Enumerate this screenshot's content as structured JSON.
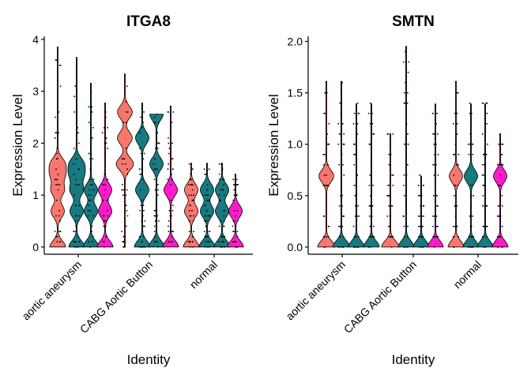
{
  "chart_data": [
    {
      "type": "violin",
      "title": "ITGA8",
      "xlabel": "Identity",
      "ylabel": "Expression Level",
      "categories": [
        "aortic aneurysm",
        "CABG Aortic Button",
        "normal"
      ],
      "ylim": [
        -0.14,
        4.06
      ],
      "yticks": [
        "0",
        "1",
        "2",
        "3",
        "4"
      ],
      "legend": "none",
      "violins": [
        {
          "group": "aortic aneurysm",
          "color": "#F8766D",
          "max": 3.85,
          "modes": [
            0,
            0.69,
            1.1,
            1.39,
            1.61
          ]
        },
        {
          "group": "aortic aneurysm",
          "color": "#167A80",
          "max": 3.65,
          "modes": [
            0,
            0.69,
            1.1,
            1.39,
            1.61
          ]
        },
        {
          "group": "aortic aneurysm",
          "color": "#167A80",
          "max": 3.15,
          "modes": [
            0,
            0.69,
            1.1
          ]
        },
        {
          "group": "aortic aneurysm",
          "color": "#FF1BCC",
          "max": 2.77,
          "modes": [
            0,
            0.69,
            1.1
          ]
        },
        {
          "group": "CABG Aortic Button",
          "color": "#F8766D",
          "max": 3.33,
          "modes": [
            1.6,
            2.1,
            2.6
          ]
        },
        {
          "group": "CABG Aortic Button",
          "color": "#167A80",
          "max": 2.77,
          "modes": [
            0,
            1.1,
            2.1
          ]
        },
        {
          "group": "CABG Aortic Button",
          "color": "#167A80",
          "max": 2.56,
          "modes": [
            0,
            1.6,
            2.56
          ]
        },
        {
          "group": "CABG Aortic Button",
          "color": "#FF1BCC",
          "max": 2.71,
          "modes": [
            0,
            1.1
          ]
        },
        {
          "group": "normal",
          "color": "#F8766D",
          "max": 1.61,
          "modes": [
            0,
            0.69,
            1.1
          ]
        },
        {
          "group": "normal",
          "color": "#167A80",
          "max": 1.61,
          "modes": [
            0,
            0.69,
            1.1
          ]
        },
        {
          "group": "normal",
          "color": "#167A80",
          "max": 1.61,
          "modes": [
            0,
            0.69,
            1.1
          ]
        },
        {
          "group": "normal",
          "color": "#FF1BCC",
          "max": 1.39,
          "modes": [
            0,
            0.69
          ]
        }
      ]
    },
    {
      "type": "violin",
      "title": "SMTN",
      "xlabel": "Identity",
      "ylabel": "Expression Level",
      "categories": [
        "aortic aneurysm",
        "CABG Aortic Button",
        "normal"
      ],
      "ylim": [
        -0.07,
        2.05
      ],
      "yticks": [
        "0.0",
        "0.5",
        "1.0",
        "1.5",
        "2.0"
      ],
      "legend": "none",
      "violins": [
        {
          "group": "aortic aneurysm",
          "color": "#F8766D",
          "max": 1.61,
          "modes": [
            0,
            0.69
          ]
        },
        {
          "group": "aortic aneurysm",
          "color": "#167A80",
          "max": 1.61,
          "modes": [
            0
          ]
        },
        {
          "group": "aortic aneurysm",
          "color": "#167A80",
          "max": 1.39,
          "modes": [
            0
          ]
        },
        {
          "group": "aortic aneurysm",
          "color": "#167A80",
          "max": 1.39,
          "modes": [
            0
          ]
        },
        {
          "group": "CABG Aortic Button",
          "color": "#F8766D",
          "max": 1.1,
          "modes": [
            0
          ]
        },
        {
          "group": "CABG Aortic Button",
          "color": "#167A80",
          "max": 1.95,
          "modes": [
            0
          ]
        },
        {
          "group": "CABG Aortic Button",
          "color": "#167A80",
          "max": 0.69,
          "modes": [
            0
          ]
        },
        {
          "group": "CABG Aortic Button",
          "color": "#FF1BCC",
          "max": 1.39,
          "modes": [
            0
          ]
        },
        {
          "group": "normal",
          "color": "#F8766D",
          "max": 1.61,
          "modes": [
            0,
            0.69
          ]
        },
        {
          "group": "normal",
          "color": "#167A80",
          "max": 1.39,
          "modes": [
            0,
            0.69
          ]
        },
        {
          "group": "normal",
          "color": "#167A80",
          "max": 1.39,
          "modes": [
            0
          ]
        },
        {
          "group": "normal",
          "color": "#FF1BCC",
          "max": 1.1,
          "modes": [
            0,
            0.69
          ]
        }
      ]
    }
  ]
}
